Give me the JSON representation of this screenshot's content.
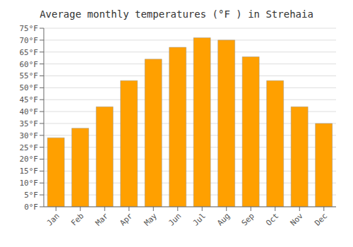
{
  "chart_data": {
    "type": "bar",
    "title": "Average monthly temperatures (°F ) in Strehaia",
    "categories": [
      "Jan",
      "Feb",
      "Mar",
      "Apr",
      "May",
      "Jun",
      "Jul",
      "Aug",
      "Sep",
      "Oct",
      "Nov",
      "Dec"
    ],
    "values": [
      29,
      33,
      42,
      53,
      62,
      67,
      71,
      70,
      63,
      53,
      42,
      35
    ],
    "color": "#FFA000",
    "ylim": [
      0,
      75
    ],
    "yticks": [
      {
        "value": 0,
        "label": "0°F"
      },
      {
        "value": 5,
        "label": "5°F"
      },
      {
        "value": 10,
        "label": "10°F"
      },
      {
        "value": 15,
        "label": "15°F"
      },
      {
        "value": 20,
        "label": "20°F"
      },
      {
        "value": 25,
        "label": "25°F"
      },
      {
        "value": 30,
        "label": "30°F"
      },
      {
        "value": 35,
        "label": "35°F"
      },
      {
        "value": 40,
        "label": "40°F"
      },
      {
        "value": 45,
        "label": "45°F"
      },
      {
        "value": 50,
        "label": "50°F"
      },
      {
        "value": 55,
        "label": "55°F"
      },
      {
        "value": 60,
        "label": "60°F"
      },
      {
        "value": 65,
        "label": "65°F"
      },
      {
        "value": 70,
        "label": "70°F"
      },
      {
        "value": 75,
        "label": "75°F"
      }
    ],
    "grid": true
  }
}
